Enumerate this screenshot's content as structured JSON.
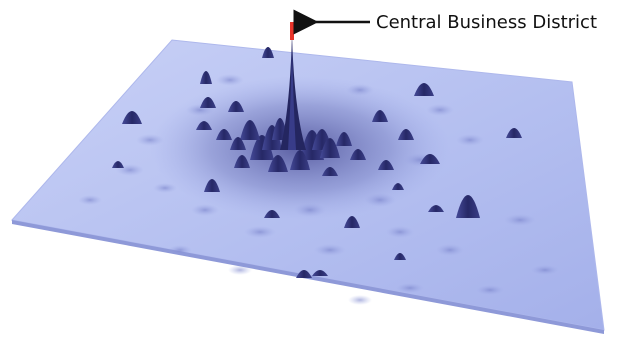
{
  "annotation": {
    "label": "Central Business District"
  },
  "colors": {
    "background": "#ffffff",
    "surface_light": "#bcc6f2",
    "surface_mid": "#9eaae6",
    "peak_dark": "#2a2c6e",
    "peak_mid": "#4a4f9e",
    "cbd_marker": "#e8342a",
    "arrow": "#111111"
  }
}
